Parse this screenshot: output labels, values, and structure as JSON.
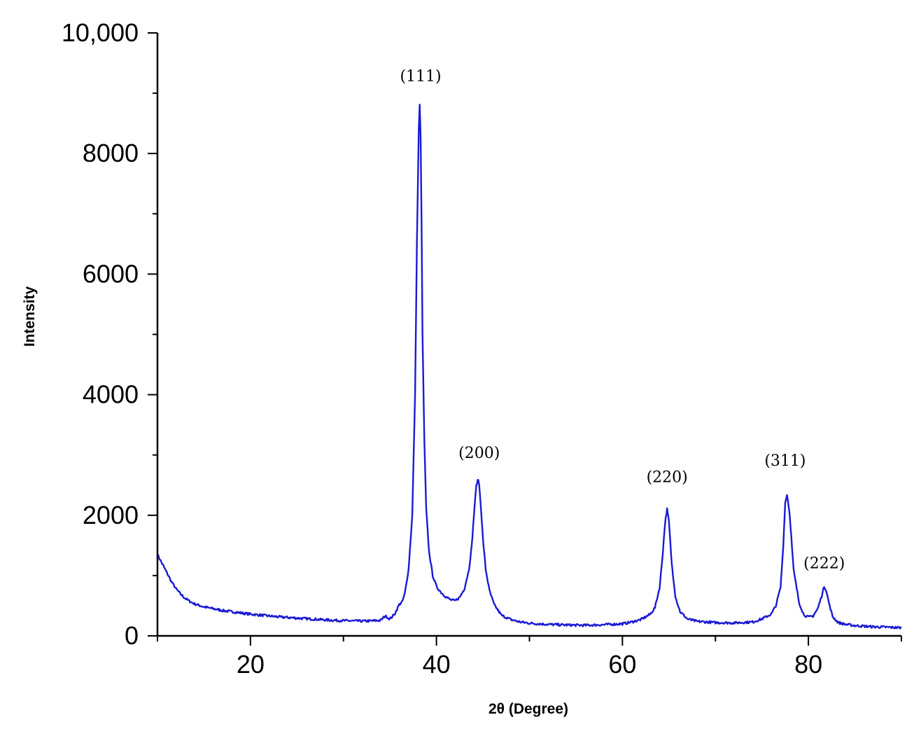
{
  "chart_data": {
    "type": "line",
    "title": "",
    "xlabel": "2θ (Degree)",
    "ylabel": "Intensity",
    "xlim": [
      10,
      90
    ],
    "ylim": [
      0,
      10000
    ],
    "x_ticks": [
      20,
      40,
      60,
      80
    ],
    "x_tick_labels": [
      "20",
      "40",
      "60",
      "80"
    ],
    "x_minor_ticks": [
      10,
      30,
      50,
      70,
      90
    ],
    "y_ticks": [
      0,
      2000,
      4000,
      6000,
      8000,
      10000
    ],
    "y_tick_labels": [
      "0",
      "2000",
      "4000",
      "6000",
      "8000",
      "10,000"
    ],
    "y_minor_ticks": [
      1000,
      3000,
      5000,
      7000,
      9000
    ],
    "grid": false,
    "legend": "none",
    "line_color": "#1a1ad4",
    "series": [
      {
        "x": [
          10,
          10.5,
          11,
          11.5,
          12,
          12.5,
          13,
          13.5,
          14,
          15,
          16,
          17,
          18,
          19,
          20,
          21,
          22,
          23,
          24,
          25,
          26,
          27,
          28,
          29,
          30,
          31,
          32,
          33,
          34,
          34.5,
          35,
          35.5,
          36,
          36.3,
          36.6,
          37,
          37.4,
          37.7,
          37.9,
          38.1,
          38.2,
          38.3,
          38.4,
          38.5,
          38.7,
          38.9,
          39.2,
          39.6,
          40,
          40.5,
          41,
          41.5,
          42,
          42.5,
          43,
          43.5,
          43.8,
          44.1,
          44.3,
          44.5,
          44.6,
          44.8,
          45,
          45.3,
          45.7,
          46.2,
          47,
          48,
          49,
          50,
          52,
          54,
          56,
          58,
          60,
          61,
          62,
          63,
          63.5,
          64,
          64.3,
          64.6,
          64.8,
          65,
          65.3,
          65.7,
          66.2,
          67,
          68,
          70,
          72,
          74,
          75,
          76,
          76.5,
          77,
          77.3,
          77.5,
          77.7,
          78,
          78.4,
          79,
          79.5,
          80,
          80.5,
          81,
          81.4,
          81.7,
          81.9,
          82.2,
          82.6,
          83.2,
          84,
          85,
          86,
          87,
          88,
          89,
          90
        ],
        "y": [
          1350,
          1200,
          1050,
          900,
          780,
          690,
          620,
          570,
          530,
          480,
          450,
          420,
          400,
          380,
          360,
          345,
          330,
          315,
          305,
          295,
          285,
          275,
          265,
          258,
          252,
          248,
          245,
          248,
          258,
          330,
          280,
          360,
          520,
          560,
          700,
          1100,
          2000,
          4000,
          6500,
          8400,
          8800,
          8300,
          6800,
          5000,
          3200,
          2100,
          1400,
          1000,
          820,
          720,
          650,
          600,
          580,
          640,
          780,
          1100,
          1500,
          2150,
          2500,
          2600,
          2500,
          2100,
          1600,
          1100,
          750,
          520,
          340,
          270,
          230,
          210,
          190,
          180,
          175,
          185,
          200,
          230,
          270,
          360,
          470,
          800,
          1300,
          1900,
          2100,
          1900,
          1200,
          650,
          400,
          280,
          240,
          220,
          215,
          230,
          280,
          360,
          500,
          800,
          1500,
          2200,
          2350,
          2000,
          1100,
          550,
          350,
          310,
          330,
          450,
          650,
          820,
          760,
          550,
          320,
          220,
          190,
          170,
          160,
          150,
          145,
          140,
          135
        ]
      }
    ],
    "annotations": [
      {
        "text": "(111)",
        "x": 38.3,
        "y": 9200
      },
      {
        "text": "(200)",
        "x": 44.6,
        "y": 2950
      },
      {
        "text": "(220)",
        "x": 64.8,
        "y": 2550
      },
      {
        "text": "(311)",
        "x": 77.5,
        "y": 2820
      },
      {
        "text": "(222)",
        "x": 81.7,
        "y": 1120
      }
    ]
  }
}
